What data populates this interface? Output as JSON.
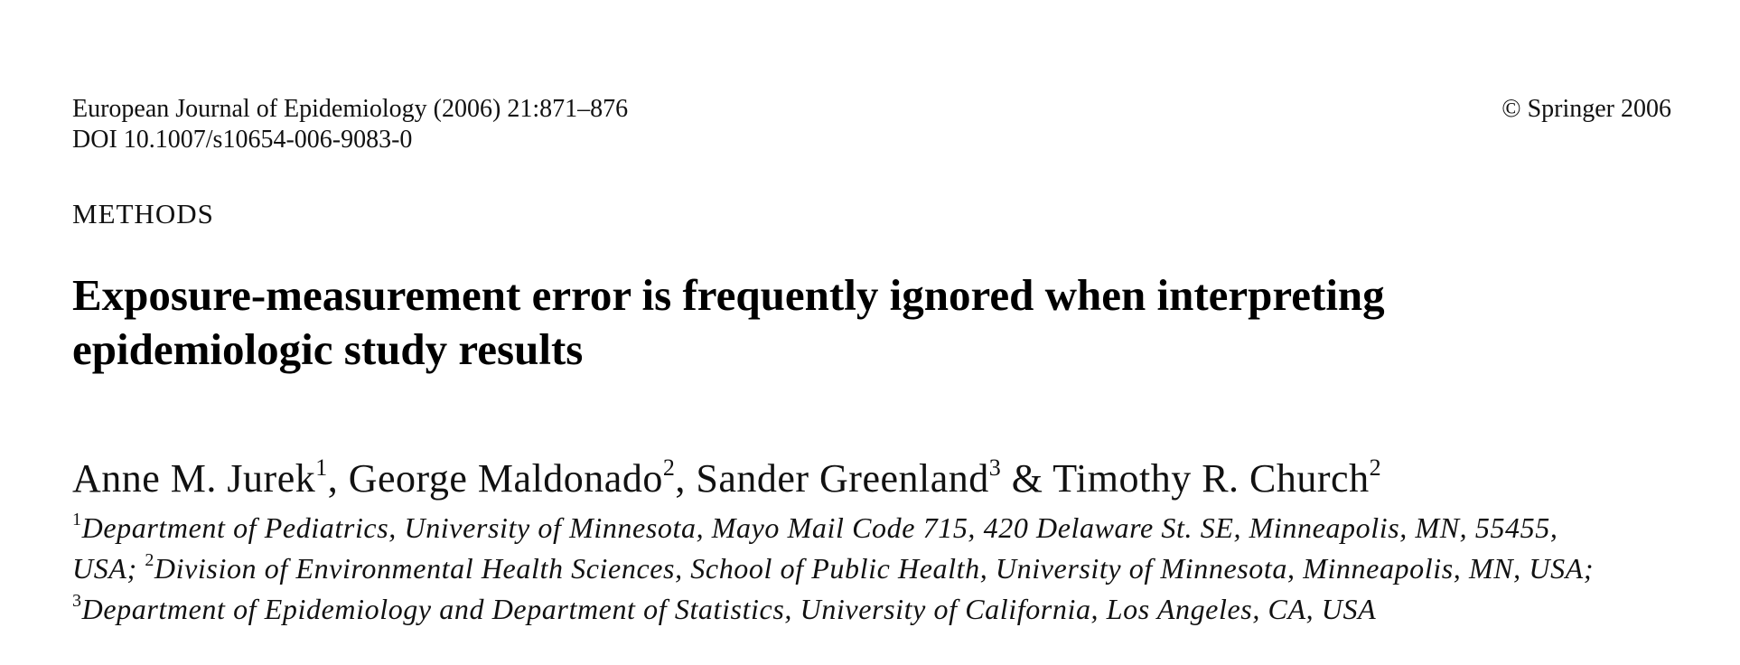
{
  "header": {
    "journal_citation": "European Journal of Epidemiology (2006) 21:871–876",
    "doi": "DOI 10.1007/s10654-006-9083-0",
    "copyright": "© Springer 2006"
  },
  "section_label": "METHODS",
  "title": {
    "line1": "Exposure-measurement error is frequently ignored when interpreting",
    "line2": "epidemiologic study results"
  },
  "authors": [
    {
      "name": "Anne M. Jurek",
      "affiliation_mark": "1",
      "separator": ", "
    },
    {
      "name": "George Maldonado",
      "affiliation_mark": "2",
      "separator": ", "
    },
    {
      "name": "Sander Greenland",
      "affiliation_mark": "3",
      "separator": " & "
    },
    {
      "name": "Timothy R. Church",
      "affiliation_mark": "2",
      "separator": ""
    }
  ],
  "affiliations": {
    "line1": {
      "mark": "1",
      "text": "Department of Pediatrics, University of Minnesota, Mayo Mail Code 715, 420 Delaware St. SE, Minneapolis, MN, 55455,"
    },
    "line2": {
      "lead_text": "USA; ",
      "mark": "2",
      "text": "Division of Environmental Health Sciences, School of Public Health, University of Minnesota, Minneapolis, MN, USA;"
    },
    "line3": {
      "mark": "3",
      "text": "Department of Epidemiology and Department of Statistics, University of California, Los Angeles, CA, USA"
    }
  }
}
